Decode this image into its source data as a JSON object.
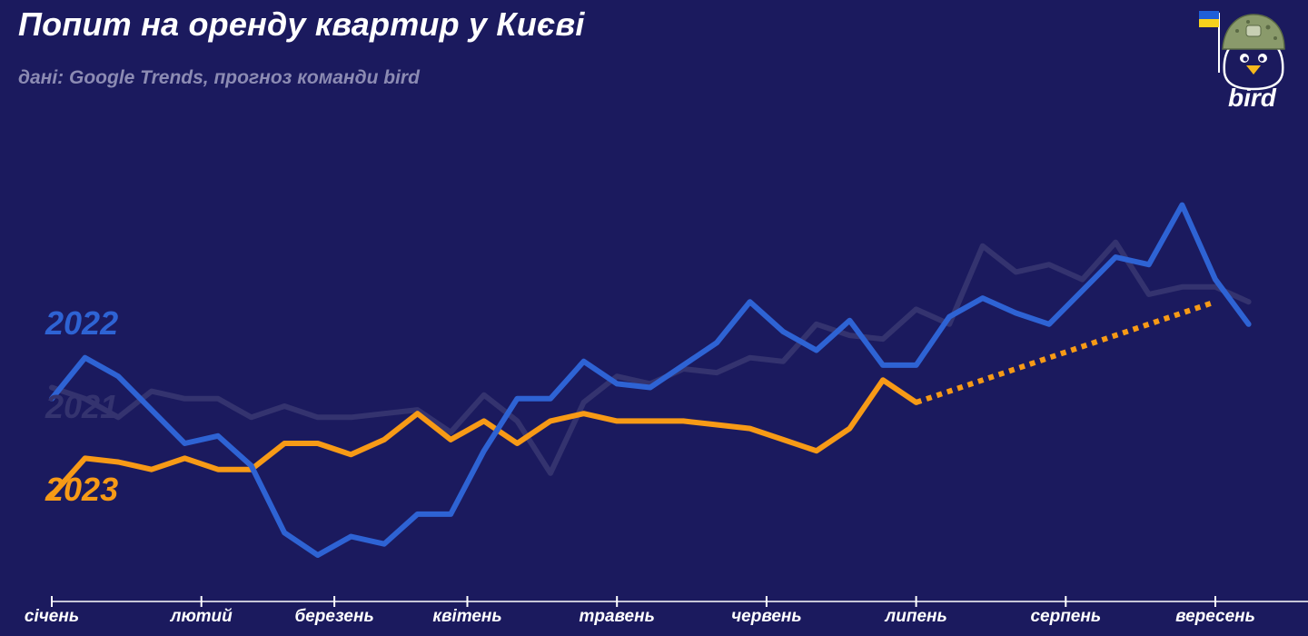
{
  "header": {
    "title": "Попит на оренду квартир у Києві",
    "subtitle": "дані: Google Trends, прогноз команди bird"
  },
  "logo": {
    "text": "bird",
    "icon": "helmeted-bird-with-ukraine-flag-icon",
    "colors": {
      "flag_blue": "#1e5fd8",
      "flag_yellow": "#f6d11c",
      "helmet": "#8a9a6b",
      "beak": "#f6b81c"
    }
  },
  "chart_data": {
    "type": "line",
    "x_label_ticks": [
      "січень",
      "лютий",
      "березень",
      "квітень",
      "травень",
      "червень",
      "липень",
      "серпень",
      "вересень"
    ],
    "x_tick_week": [
      0,
      4.5,
      8.5,
      12.5,
      17,
      21.5,
      26,
      30.5,
      35
    ],
    "x_range": [
      0,
      37
    ],
    "ylim": [
      0,
      100
    ],
    "grid": false,
    "legend": "inline-left",
    "series": [
      {
        "name": "2021",
        "color": "#34336f",
        "values": [
          55,
          52,
          47,
          54,
          52,
          52,
          47,
          50,
          47,
          47,
          48,
          49,
          43,
          53,
          46,
          32,
          51,
          58,
          56,
          60,
          59,
          63,
          62,
          72,
          69,
          68,
          76,
          72,
          93,
          86,
          88,
          84,
          94,
          80,
          82,
          82,
          78
        ]
      },
      {
        "name": "2022",
        "color": "#2e63d4",
        "values": [
          52,
          63,
          58,
          49,
          40,
          42,
          34,
          16,
          10,
          15,
          13,
          21,
          21,
          38,
          52,
          52,
          62,
          56,
          55,
          61,
          67,
          78,
          70,
          65,
          73,
          61,
          61,
          74,
          79,
          75,
          72,
          81,
          90,
          88,
          104,
          84,
          72
        ]
      },
      {
        "name": "2023",
        "color": "#f79a16",
        "values": [
          26,
          36,
          35,
          33,
          36,
          33,
          33,
          40,
          40,
          37,
          41,
          48,
          41,
          46,
          40,
          46,
          48,
          46,
          46,
          46,
          45,
          44,
          41,
          38,
          44,
          57,
          51
        ]
      },
      {
        "name": "",
        "style": "dotted",
        "color": "#f79a16",
        "x": [
          26,
          35
        ],
        "values": [
          51,
          78
        ]
      }
    ]
  }
}
